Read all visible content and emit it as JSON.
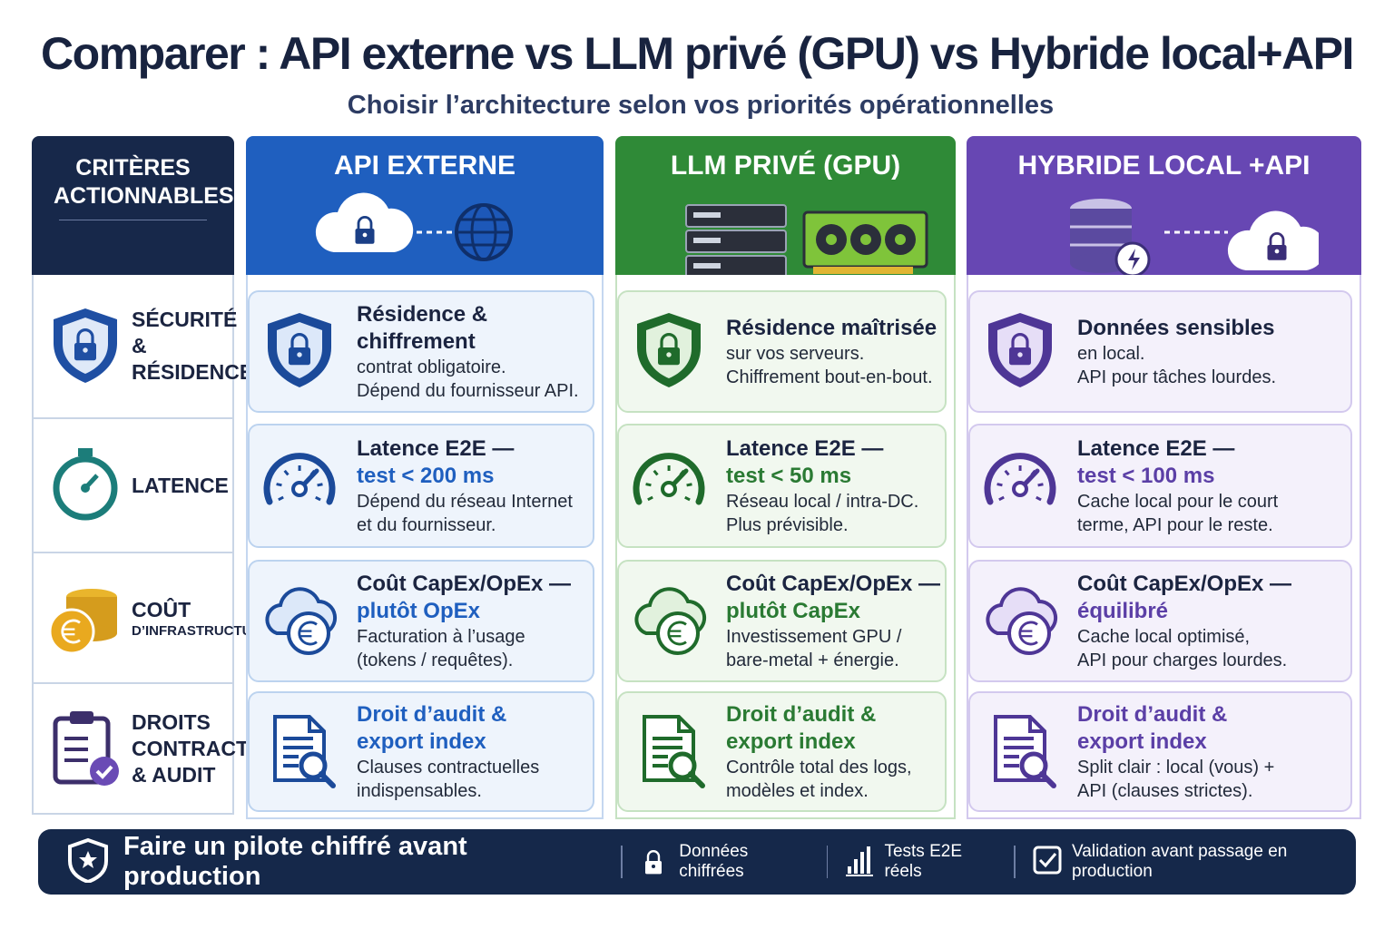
{
  "header": {
    "title": "Comparer : API externe vs LLM privé (GPU) vs Hybride local+API",
    "subtitle": "Choisir l’architecture selon vos priorités opérationnelles"
  },
  "criteria": {
    "heading": "CRITÈRES ACTIONNABLES",
    "items": [
      {
        "label": "SÉCURITÉ & RÉSIDENCE"
      },
      {
        "label": "LATENCE"
      },
      {
        "label": "COÛT",
        "sublabel": "D’INFRASTRUCTURE"
      },
      {
        "label": "DROITS CONTRACTUELS & AUDIT"
      }
    ]
  },
  "columns": [
    {
      "title": "API EXTERNE",
      "cells": [
        {
          "title": "Résidence & chiffrement",
          "lines": [
            "contrat obligatoire.",
            "Dépend du fournisseur API."
          ]
        },
        {
          "title": "Latence E2E —",
          "highlight": "test < 200 ms",
          "lines": [
            "Dépend du réseau Internet",
            "et du fournisseur."
          ]
        },
        {
          "title": "Coût CapEx/OpEx —",
          "highlight": "plutôt OpEx",
          "lines": [
            "Facturation à l’usage",
            "(tokens / requêtes)."
          ]
        },
        {
          "title": "Droit d’audit &",
          "highlight": "export index",
          "lines": [
            "Clauses contractuelles",
            "indispensables."
          ]
        }
      ]
    },
    {
      "title": "LLM PRIVÉ (GPU)",
      "cells": [
        {
          "title": "Résidence maîtrisée",
          "lines": [
            "sur vos serveurs.",
            "Chiffrement bout-en-bout."
          ]
        },
        {
          "title": "Latence E2E —",
          "highlight": "test < 50 ms",
          "lines": [
            "Réseau local / intra-DC.",
            "Plus prévisible."
          ]
        },
        {
          "title": "Coût CapEx/OpEx —",
          "highlight": "plutôt CapEx",
          "lines": [
            "Investissement GPU /",
            "bare-metal + énergie."
          ]
        },
        {
          "title": "Droit d’audit &",
          "highlight": "export index",
          "lines": [
            "Contrôle total des logs,",
            "modèles et index."
          ]
        }
      ]
    },
    {
      "title": "HYBRIDE LOCAL +API",
      "cells": [
        {
          "title": "Données sensibles",
          "lines": [
            "en local.",
            "API pour tâches lourdes."
          ]
        },
        {
          "title": "Latence E2E —",
          "highlight": "test < 100 ms",
          "lines": [
            "Cache local pour le court",
            "terme, API pour le reste."
          ]
        },
        {
          "title": "Coût CapEx/OpEx —",
          "highlight": "équilibré",
          "lines": [
            "Cache local optimisé,",
            "API pour charges lourdes."
          ]
        },
        {
          "title": "Droit d’audit &",
          "highlight": "export index",
          "lines": [
            "Split clair : local (vous) +",
            "API (clauses strictes)."
          ]
        }
      ]
    }
  ],
  "footer": {
    "title": "Faire un pilote chiffré avant production",
    "items": [
      "Données chiffrées",
      "Tests E2E réels",
      "Validation avant passage en production"
    ]
  }
}
